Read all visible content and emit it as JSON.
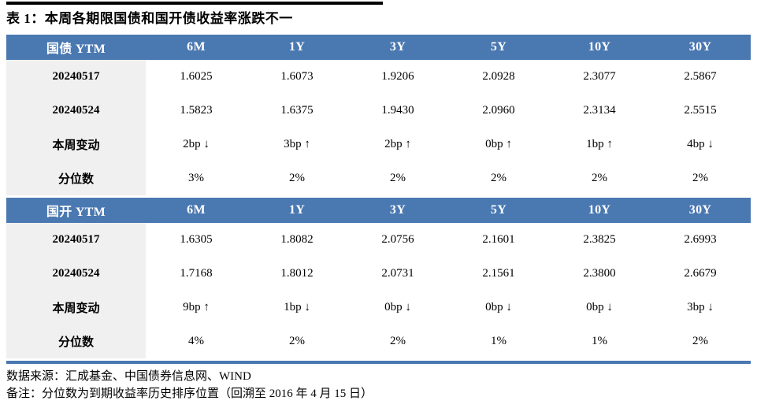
{
  "title": "表 1：本周各期限国债和国开债收益率涨跌不一",
  "columns": [
    "6M",
    "1Y",
    "3Y",
    "5Y",
    "10Y",
    "30Y"
  ],
  "sections": [
    {
      "header": "国债 YTM",
      "rows": [
        {
          "label": "20240517",
          "values": [
            "1.6025",
            "1.6073",
            "1.9206",
            "2.0928",
            "2.3077",
            "2.5867"
          ]
        },
        {
          "label": "20240524",
          "values": [
            "1.5823",
            "1.6375",
            "1.9430",
            "2.0960",
            "2.3134",
            "2.5515"
          ]
        },
        {
          "label": "本周变动",
          "values": [
            "2bp ↓",
            "3bp ↑",
            "2bp ↑",
            "0bp ↑",
            "1bp ↑",
            "4bp ↓"
          ]
        },
        {
          "label": "分位数",
          "values": [
            "3%",
            "2%",
            "2%",
            "2%",
            "2%",
            "2%"
          ]
        }
      ]
    },
    {
      "header": "国开 YTM",
      "rows": [
        {
          "label": "20240517",
          "values": [
            "1.6305",
            "1.8082",
            "2.0756",
            "2.1601",
            "2.3825",
            "2.6993"
          ]
        },
        {
          "label": "20240524",
          "values": [
            "1.7168",
            "1.8012",
            "2.0731",
            "2.1561",
            "2.3800",
            "2.6679"
          ]
        },
        {
          "label": "本周变动",
          "values": [
            "9bp ↑",
            "1bp ↓",
            "0bp ↓",
            "0bp ↓",
            "0bp ↓",
            "3bp ↓"
          ]
        },
        {
          "label": "分位数",
          "values": [
            "4%",
            "2%",
            "2%",
            "1%",
            "1%",
            "2%"
          ]
        }
      ]
    }
  ],
  "footer": {
    "source": "数据来源：汇成基金、中国债券信息网、WIND",
    "note": "备注：分位数为到期收益率历史排序位置（回溯至 2016 年 4 月 15 日）"
  },
  "colors": {
    "header_bg": "#4A78B1",
    "row_label_bg": "#F0F0F0",
    "bottom_rule": "#4A78B1",
    "title_rule": "#000000"
  }
}
